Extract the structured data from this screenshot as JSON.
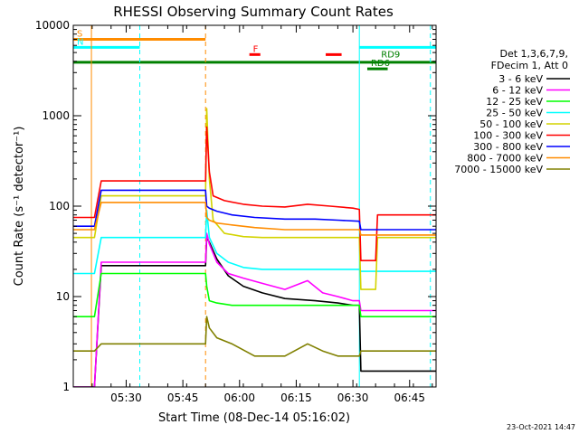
{
  "chart_data": {
    "type": "line",
    "title": "RHESSI Observing Summary Count Rates",
    "xlabel": "Start Time (08-Dec-14 05:16:02)",
    "ylabel": "Count Rate (s⁻¹ detector⁻¹)",
    "x_unit": "minutes after 05:16:02",
    "xlim": [
      0,
      96
    ],
    "ylim": [
      1,
      10000
    ],
    "yscale": "log",
    "x_ticks": [
      {
        "label": "05:30",
        "value": 14
      },
      {
        "label": "05:45",
        "value": 29
      },
      {
        "label": "06:00",
        "value": 44
      },
      {
        "label": "06:15",
        "value": 59
      },
      {
        "label": "06:30",
        "value": 74
      },
      {
        "label": "06:45",
        "value": 89
      }
    ],
    "y_ticks": [
      {
        "label": "1",
        "value": 1
      },
      {
        "label": "10",
        "value": 10
      },
      {
        "label": "100",
        "value": 100
      },
      {
        "label": "1000",
        "value": 1000
      },
      {
        "label": "10000",
        "value": 10000
      }
    ],
    "legend_placement": "right",
    "legend_header": [
      "Det 1,3,6,7,9,",
      "FDecim 1, Att 0"
    ],
    "series": [
      {
        "name": "3 - 6 keV",
        "color": "#000000",
        "x": [
          0,
          4,
          4.8,
          5.6,
          7.4,
          35,
          35.3,
          36,
          38,
          41,
          45,
          50,
          56,
          64,
          70,
          74,
          75.7,
          76.1,
          80,
          84,
          88,
          96
        ],
        "y": [
          1,
          1,
          1,
          1,
          22,
          22,
          45,
          40,
          26,
          17,
          13,
          11,
          9.5,
          9,
          8.5,
          8,
          8,
          1.5,
          1.5,
          1.5,
          1.5,
          1.5
        ]
      },
      {
        "name": "6 - 12 keV",
        "color": "#ff00ff",
        "x": [
          0,
          4,
          4.8,
          5.6,
          7.4,
          35,
          35.3,
          36,
          38,
          41,
          45,
          50,
          56,
          62,
          66,
          70,
          74,
          75.7,
          76.1,
          80,
          84,
          88,
          96
        ],
        "y": [
          1,
          1,
          1,
          1,
          24,
          24,
          50,
          38,
          24,
          18,
          16,
          14,
          12,
          15,
          11,
          10,
          9,
          9,
          7,
          7,
          7,
          7,
          7
        ]
      },
      {
        "name": "12 - 25 keV",
        "color": "#00ff00",
        "x": [
          0,
          4,
          4.8,
          5.6,
          7.4,
          35,
          35.3,
          36,
          38,
          42,
          48,
          60,
          70,
          75.7,
          76.1,
          80,
          84,
          88,
          96
        ],
        "y": [
          6,
          6,
          6,
          6,
          18,
          18,
          13,
          9,
          8.5,
          8,
          8,
          8,
          8,
          8,
          6,
          6,
          6,
          6,
          6
        ]
      },
      {
        "name": "25 - 50 keV",
        "color": "#00ffff",
        "x": [
          0,
          4,
          4.8,
          5.6,
          7.4,
          35,
          35.3,
          36,
          38,
          41,
          45,
          50,
          60,
          70,
          75.7,
          76.1,
          80,
          84,
          88,
          96
        ],
        "y": [
          18,
          18,
          18,
          18,
          45,
          45,
          90,
          45,
          30,
          24,
          21,
          20,
          20,
          20,
          20,
          19,
          19,
          19,
          19,
          19
        ]
      },
      {
        "name": "50 - 100 keV",
        "color": "#d3d300",
        "x": [
          0,
          4,
          4.8,
          5.6,
          7.4,
          35,
          35.3,
          36,
          37,
          40,
          45,
          50,
          60,
          70,
          75.7,
          76.1,
          80,
          80.5,
          84,
          88,
          96
        ],
        "y": [
          45,
          45,
          45,
          45,
          130,
          130,
          1200,
          200,
          70,
          50,
          46,
          45,
          45,
          45,
          45,
          12,
          12,
          45,
          45,
          45,
          45
        ]
      },
      {
        "name": "100 - 300 keV",
        "color": "#ff0000",
        "x": [
          0,
          4,
          4.8,
          5.6,
          7.4,
          35,
          35.3,
          36,
          37,
          40,
          45,
          50,
          56,
          62,
          68,
          74,
          75.7,
          76.1,
          80,
          80.5,
          84,
          88,
          96
        ],
        "y": [
          75,
          75,
          75,
          75,
          190,
          190,
          750,
          240,
          130,
          115,
          105,
          100,
          98,
          105,
          100,
          95,
          92,
          25,
          25,
          80,
          80,
          80,
          80
        ]
      },
      {
        "name": "300 - 800 keV",
        "color": "#0000ff",
        "x": [
          0,
          4,
          4.8,
          5.6,
          7.4,
          35,
          35.3,
          36,
          38,
          42,
          48,
          56,
          64,
          70,
          75.7,
          76.1,
          80,
          80.5,
          84,
          88,
          96
        ],
        "y": [
          60,
          60,
          60,
          60,
          150,
          150,
          100,
          95,
          88,
          80,
          75,
          72,
          72,
          70,
          68,
          55,
          55,
          55,
          55,
          55,
          55
        ]
      },
      {
        "name": "800 - 7000 keV",
        "color": "#ff8c00",
        "x": [
          0,
          4,
          4.8,
          5.6,
          7.4,
          35,
          35.3,
          36,
          38,
          42,
          48,
          56,
          64,
          70,
          75.7,
          76.1,
          80,
          84,
          88,
          96
        ],
        "y": [
          55,
          55,
          55,
          55,
          110,
          110,
          75,
          70,
          65,
          62,
          58,
          55,
          55,
          55,
          55,
          48,
          48,
          48,
          48,
          48
        ]
      },
      {
        "name": "7000 - 15000 keV",
        "color": "#808000",
        "x": [
          0,
          4,
          4.8,
          5.6,
          7.4,
          35,
          35.3,
          36,
          38,
          42,
          48,
          56,
          62,
          66,
          70,
          75.7,
          76.1,
          80,
          84,
          88,
          96
        ],
        "y": [
          2.5,
          2.5,
          2.5,
          2.5,
          3,
          3,
          6,
          4.5,
          3.5,
          3,
          2.2,
          2.2,
          3,
          2.5,
          2.2,
          2.2,
          2.5,
          2.5,
          2.5,
          2.5,
          2.5
        ]
      }
    ],
    "vertical_lines": [
      {
        "x": 4.8,
        "color": "#ff8c00",
        "style": "solid"
      },
      {
        "x": 17.6,
        "color": "#00ffff",
        "style": "dashed"
      },
      {
        "x": 35,
        "color": "#ff8c00",
        "style": "dashed"
      },
      {
        "x": 75.7,
        "color": "#00ffff",
        "style": "solid"
      },
      {
        "x": 94.5,
        "color": "#00ffff",
        "style": "dashed"
      }
    ],
    "status_bars": [
      {
        "label": "S",
        "color": "#ff8c00",
        "x0": 0,
        "x1": 35,
        "y": 7000
      },
      {
        "label": "N",
        "color": "#00ffff",
        "x0": 0,
        "x1": 17.6,
        "y": 5700
      },
      {
        "label": "",
        "color": "#00ffff",
        "x0": 75.7,
        "x1": 96,
        "y": 5700
      },
      {
        "label": "",
        "color": "#008000",
        "x0": 0,
        "x1": 96,
        "y": 3900
      },
      {
        "label": "F",
        "color": "#ff0000",
        "x0": 46.6,
        "x1": 49.5,
        "y": 4750
      },
      {
        "label": "",
        "color": "#ff0000",
        "x0": 66.8,
        "x1": 71,
        "y": 4750
      },
      {
        "label": "RD6",
        "color": "#008000",
        "x0": 77.8,
        "x1": 83.2,
        "y": 3300
      },
      {
        "label": "RD9",
        "color": "#008000",
        "x0": 80.5,
        "x1": 80.5,
        "y": 4100
      }
    ]
  },
  "timestamp": "23-Oct-2021 14:47"
}
